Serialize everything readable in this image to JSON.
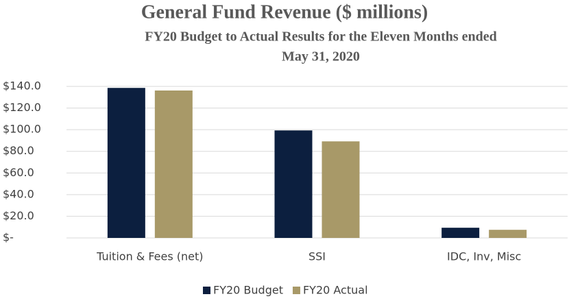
{
  "chart_data": {
    "type": "bar",
    "title": "General Fund Revenue ($ millions)",
    "subtitle": [
      "FY20 Budget to Actual Results for the Eleven Months ended",
      "May 31, 2020"
    ],
    "categories": [
      "Tuition & Fees (net)",
      "SSI",
      "IDC, Inv, Misc"
    ],
    "series": [
      {
        "name": "FY20 Budget",
        "color": "#0c1f3f",
        "values": [
          138.6,
          99.3,
          9.4
        ]
      },
      {
        "name": "FY20 Actual",
        "color": "#a89968",
        "values": [
          136.2,
          89.2,
          7.5
        ]
      }
    ],
    "ylim": [
      0,
      140
    ],
    "yticks": [
      {
        "value": 0,
        "label": "$-"
      },
      {
        "value": 20,
        "label": "$20.0"
      },
      {
        "value": 40,
        "label": "$40.0"
      },
      {
        "value": 60,
        "label": "$60.0"
      },
      {
        "value": 80,
        "label": "$80.0"
      },
      {
        "value": 100,
        "label": "$100.0"
      },
      {
        "value": 120,
        "label": "$120.0"
      },
      {
        "value": 140,
        "label": "$140.0"
      }
    ],
    "grid": true,
    "legend": "bottom"
  }
}
